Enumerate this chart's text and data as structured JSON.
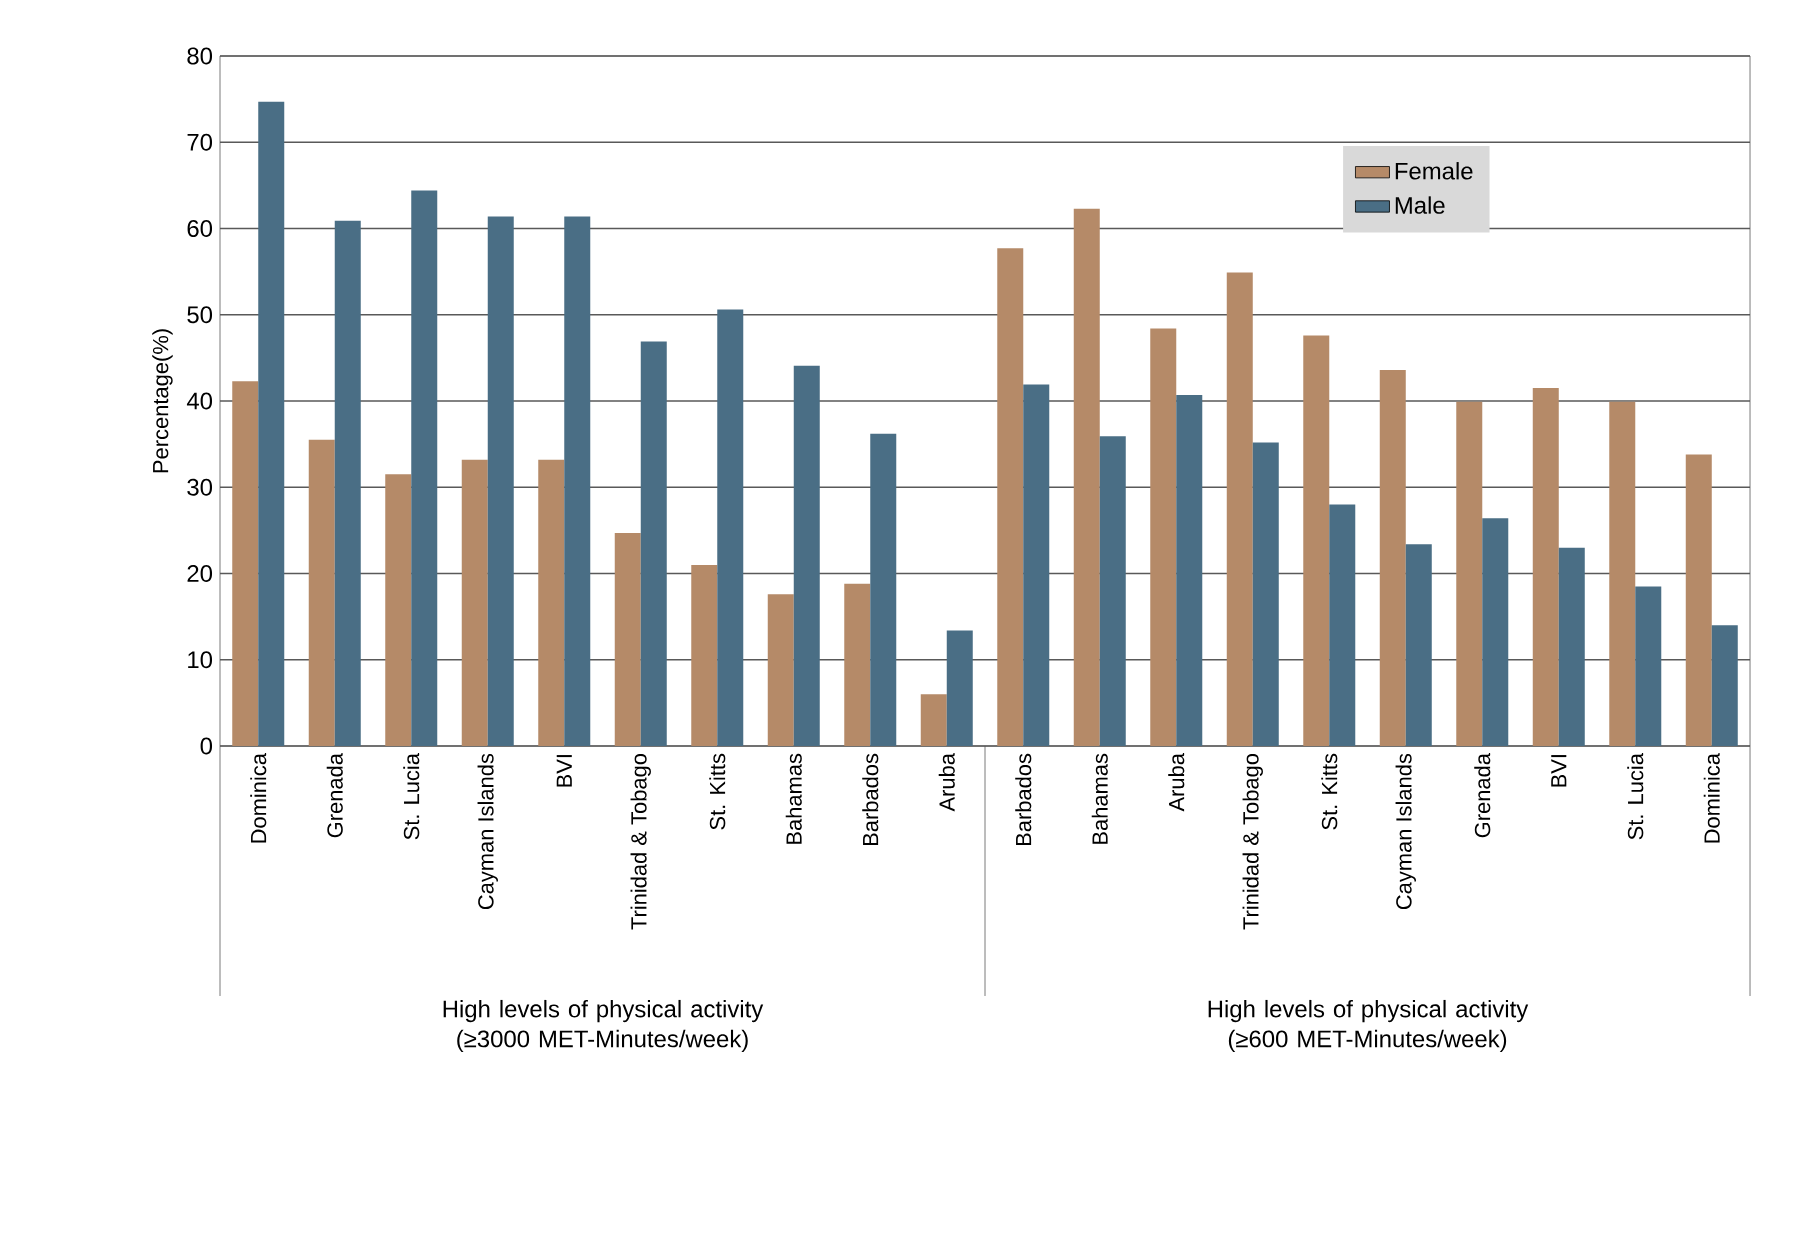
{
  "chart_data": {
    "type": "bar",
    "ylabel": "Percentage(%)",
    "categories": [
      "Dominica",
      "Grenada",
      "St. Lucia",
      "Cayman Islands",
      "BVI",
      "Trinidad & Tobago",
      "St. Kitts",
      "Bahamas",
      "Barbados",
      "Aruba",
      "Barbados",
      "Bahamas",
      "Aruba",
      "Trinidad & Tobago",
      "St. Kitts",
      "Cayman Islands",
      "Grenada",
      "BVI",
      "St. Lucia",
      "Dominica"
    ],
    "series": [
      {
        "name": "Female",
        "color": "#b58a68",
        "values": [
          42.3,
          35.5,
          31.5,
          33.2,
          33.2,
          24.7,
          21.0,
          17.6,
          18.8,
          6.0,
          57.7,
          62.3,
          48.4,
          54.9,
          47.6,
          43.6,
          39.9,
          41.5,
          39.9,
          33.8
        ]
      },
      {
        "name": "Male",
        "color": "#4a6e85",
        "values": [
          74.7,
          60.9,
          64.4,
          61.4,
          61.4,
          46.9,
          50.6,
          44.1,
          36.2,
          13.4,
          41.9,
          35.9,
          40.7,
          35.2,
          28.0,
          23.4,
          26.4,
          23.0,
          18.5,
          14.0
        ]
      }
    ],
    "annotations": [
      "High levels of physical activity (≥3000 MET-Minutes/week)",
      "High levels of physical activity (≥600 MET-Minutes/week)"
    ],
    "ylim": [
      0,
      80
    ],
    "yticks": [
      0,
      10,
      20,
      30,
      40,
      50,
      60,
      70,
      80
    ],
    "grid": "y",
    "legend": "top right"
  }
}
